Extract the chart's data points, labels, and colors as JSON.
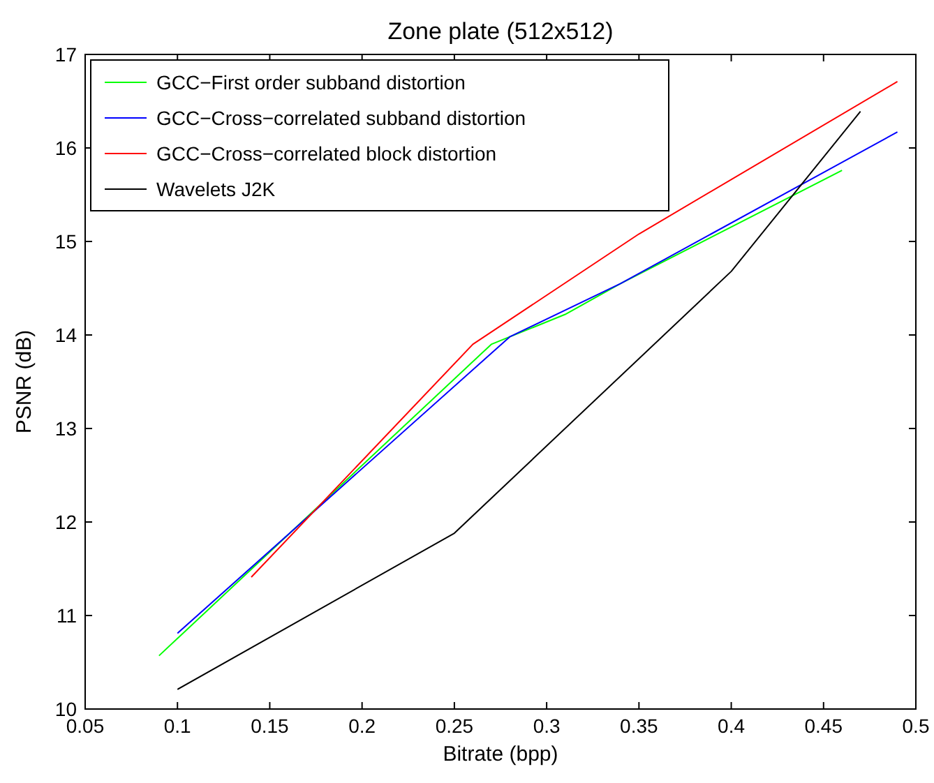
{
  "chart_data": {
    "type": "line",
    "title": "Zone plate (512x512)",
    "xlabel": "Bitrate (bpp)",
    "ylabel": "PSNR (dB)",
    "xlim": [
      0.05,
      0.5
    ],
    "xticks": [
      0.05,
      0.1,
      0.15,
      0.2,
      0.25,
      0.3,
      0.35,
      0.4,
      0.45,
      0.5
    ],
    "ylim": [
      10,
      17
    ],
    "yticks": [
      10,
      11,
      12,
      13,
      14,
      15,
      16,
      17
    ],
    "grid": false,
    "legend": "top left",
    "marker": "none",
    "line_style": "solid",
    "series": [
      {
        "name": "GCC−First order subband distortion",
        "color": "#00ff00",
        "x": [
          0.09,
          0.27,
          0.28,
          0.31,
          0.34,
          0.46
        ],
        "values": [
          10.57,
          13.9,
          13.98,
          14.22,
          14.55,
          15.76
        ]
      },
      {
        "name": "GCC−Cross−correlated subband distortion",
        "color": "#0000ff",
        "x": [
          0.1,
          0.28,
          0.34,
          0.49
        ],
        "values": [
          10.81,
          13.98,
          14.55,
          16.17
        ]
      },
      {
        "name": "GCC−Cross−correlated block distortion",
        "color": "#ff0000",
        "x": [
          0.14,
          0.26,
          0.35,
          0.49
        ],
        "values": [
          11.41,
          13.9,
          15.08,
          16.71
        ]
      },
      {
        "name": "Wavelets J2K",
        "color": "#000000",
        "x": [
          0.1,
          0.25,
          0.4,
          0.47
        ],
        "values": [
          10.21,
          11.88,
          14.68,
          16.39
        ]
      }
    ]
  }
}
